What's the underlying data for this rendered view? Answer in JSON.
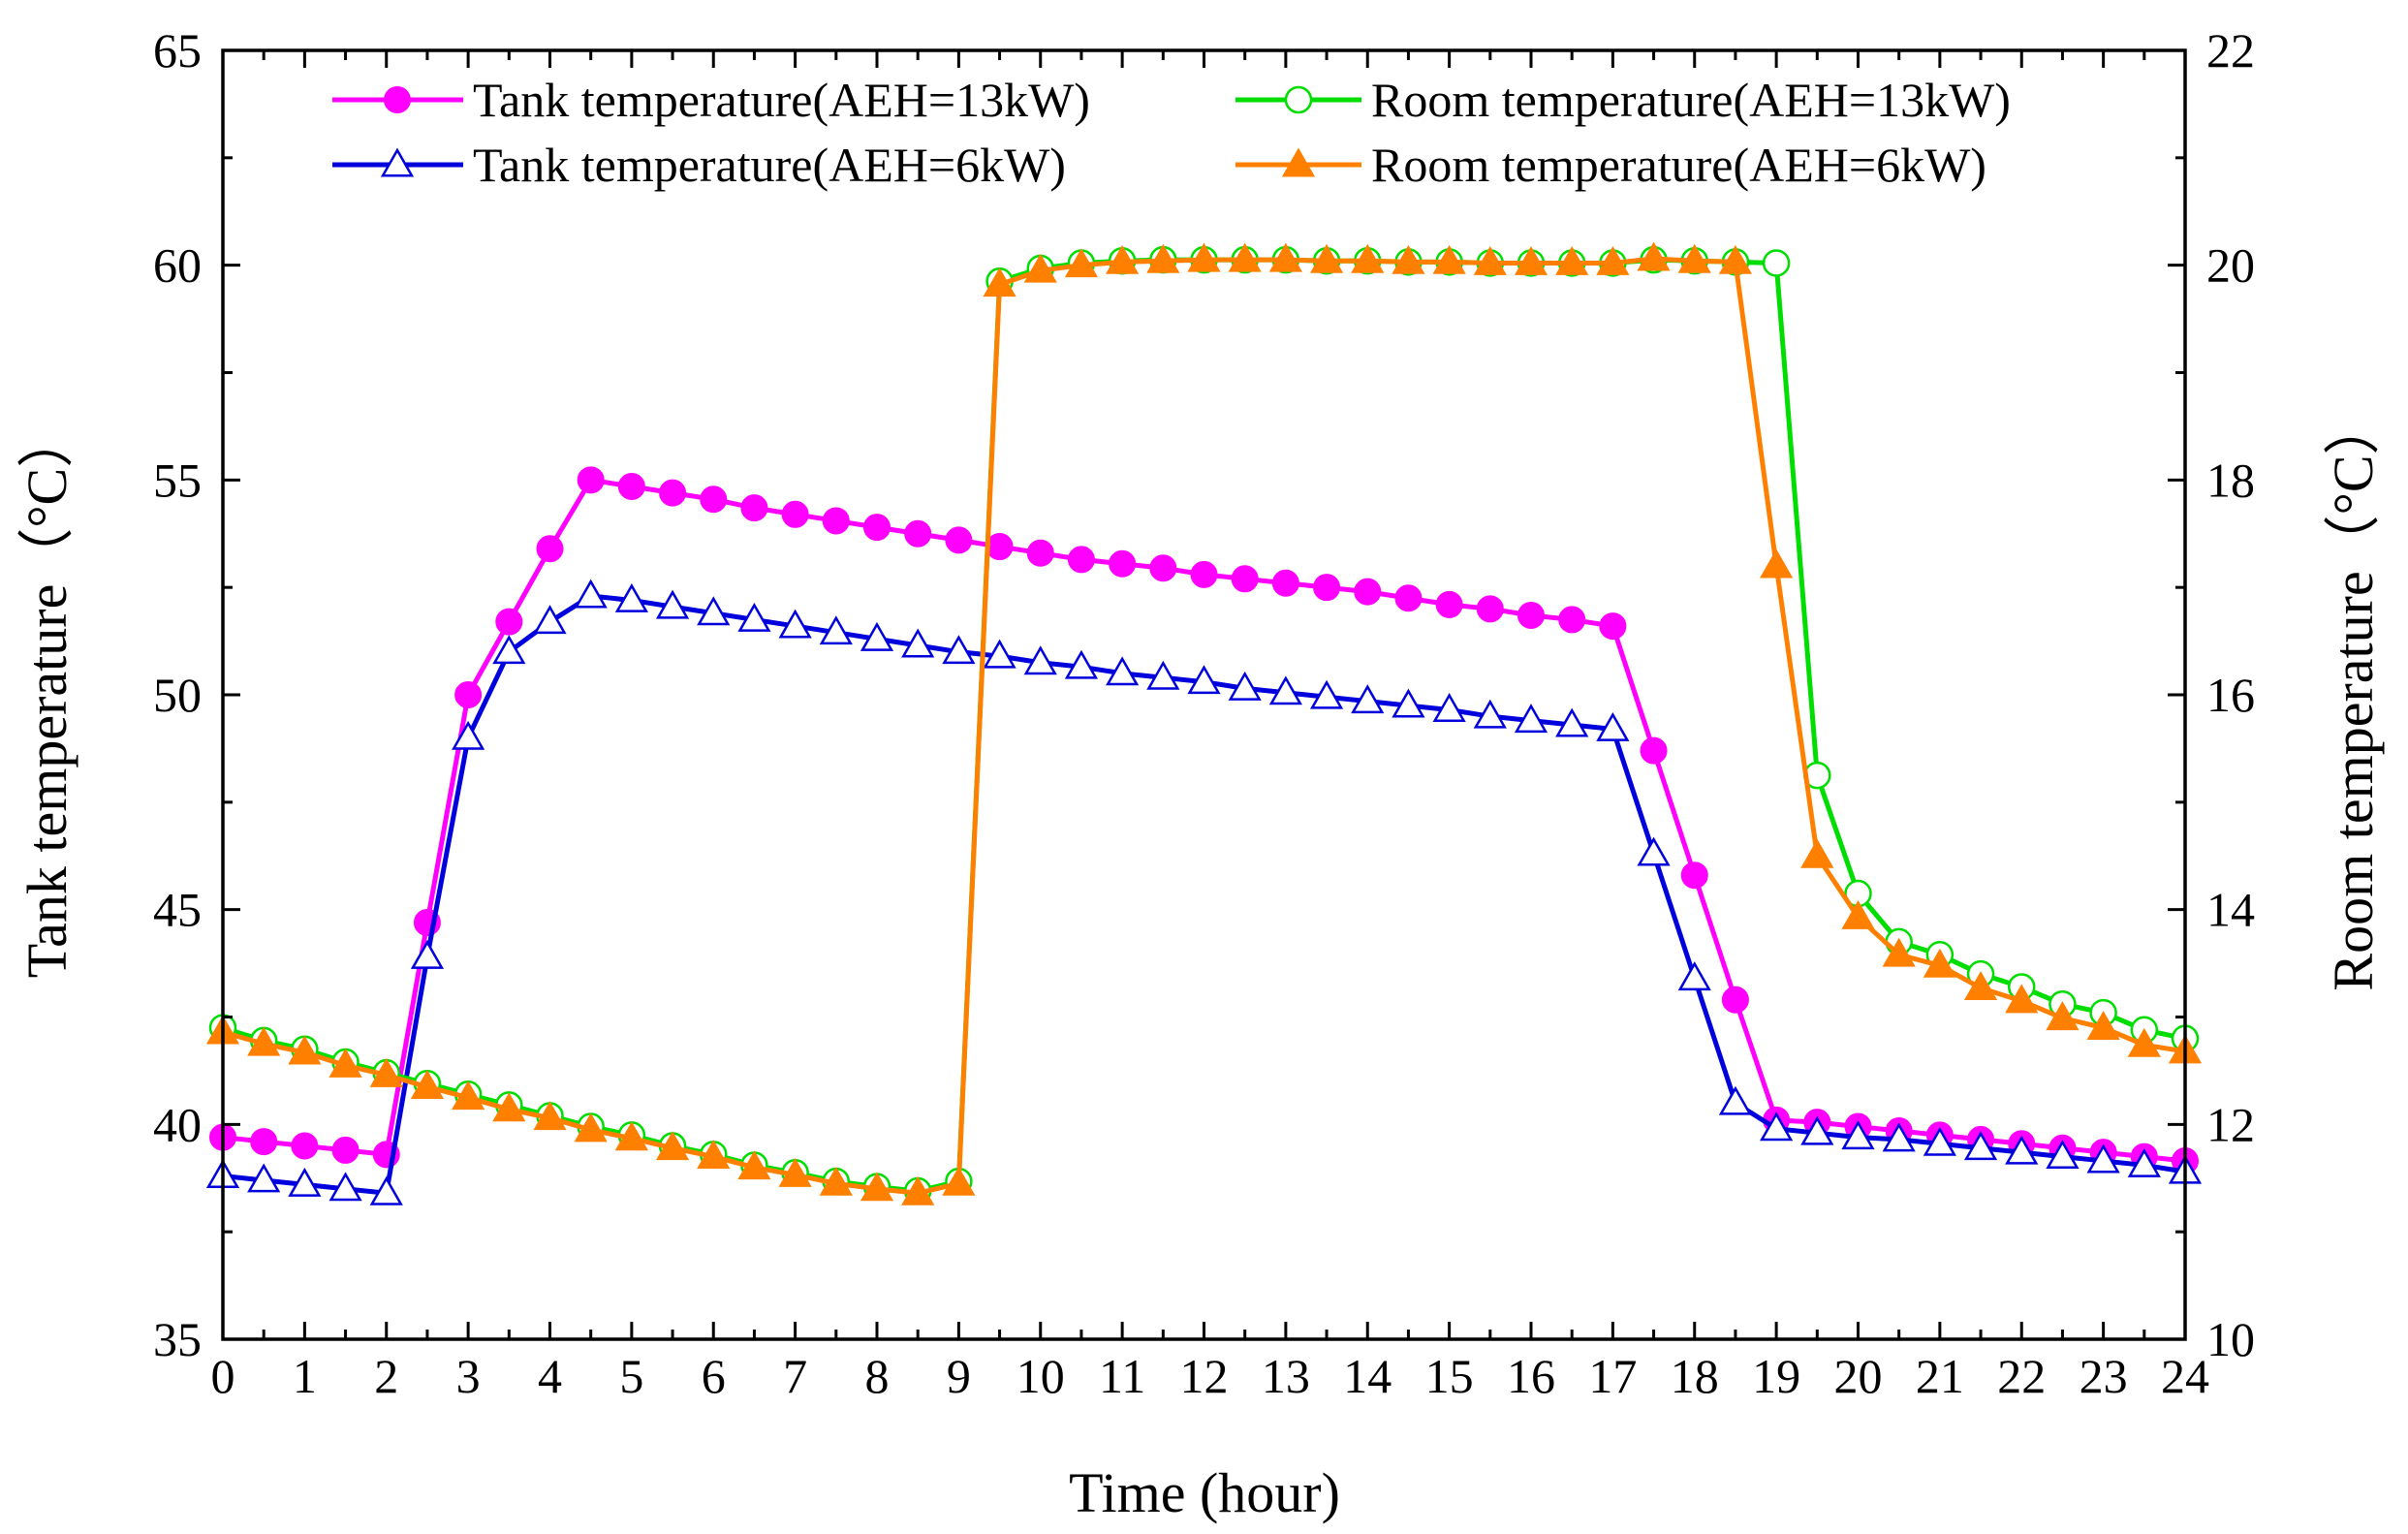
{
  "chart_data": {
    "type": "line",
    "title": "",
    "xlabel": "Time (hour)",
    "ylabel_left": "Tank temperature（°C）",
    "ylabel_right": "Room temperature（°C）",
    "xlim": [
      0,
      24
    ],
    "ylim_left": [
      35,
      65
    ],
    "ylim_right": [
      10,
      22
    ],
    "xticks": [
      0,
      1,
      2,
      3,
      4,
      5,
      6,
      7,
      8,
      9,
      10,
      11,
      12,
      13,
      14,
      15,
      16,
      17,
      18,
      19,
      20,
      21,
      22,
      23,
      24
    ],
    "yticks_left": [
      35,
      40,
      45,
      50,
      55,
      60,
      65
    ],
    "yticks_right": [
      10,
      12,
      14,
      16,
      18,
      20,
      22
    ],
    "legend_placement": "top",
    "series": [
      {
        "name": "Tank temperature(AEH=13kW)",
        "axis": "left",
        "color": "#ff00ff",
        "marker": "filled-circle",
        "x": [
          0,
          0.5,
          1,
          1.5,
          2,
          2.5,
          3,
          3.5,
          4,
          4.5,
          5,
          5.5,
          6,
          6.5,
          7,
          7.5,
          8,
          8.5,
          9,
          9.5,
          10,
          10.5,
          11,
          11.5,
          12,
          12.5,
          13,
          13.5,
          14,
          14.5,
          15,
          15.5,
          16,
          16.5,
          17,
          17.5,
          18,
          18.5,
          19,
          19.5,
          20,
          20.5,
          21,
          21.5,
          22,
          22.5,
          23,
          23.5,
          24
        ],
        "y": [
          39.7,
          39.6,
          39.5,
          39.4,
          39.3,
          44.7,
          50.0,
          51.7,
          53.4,
          55.0,
          54.85,
          54.7,
          54.55,
          54.35,
          54.2,
          54.05,
          53.9,
          53.75,
          53.6,
          53.45,
          53.3,
          53.15,
          53.05,
          52.95,
          52.8,
          52.7,
          52.6,
          52.5,
          52.4,
          52.25,
          52.1,
          52.0,
          51.85,
          51.75,
          51.6,
          48.7,
          45.8,
          42.9,
          40.1,
          40.05,
          39.95,
          39.85,
          39.75,
          39.65,
          39.55,
          39.45,
          39.35,
          39.25,
          39.15
        ]
      },
      {
        "name": "Tank temperature(AEH=6kW)",
        "axis": "left",
        "color": "#0000dd",
        "marker": "open-triangle",
        "x": [
          0,
          0.5,
          1,
          1.5,
          2,
          2.5,
          3,
          3.5,
          4,
          4.5,
          5,
          5.5,
          6,
          6.5,
          7,
          7.5,
          8,
          8.5,
          9,
          9.5,
          10,
          10.5,
          11,
          11.5,
          12,
          12.5,
          13,
          13.5,
          14,
          14.5,
          15,
          15.5,
          16,
          16.5,
          17,
          17.5,
          18,
          18.5,
          19,
          19.5,
          20,
          20.5,
          21,
          21.5,
          22,
          22.5,
          23,
          23.5,
          24
        ],
        "y": [
          38.8,
          38.7,
          38.6,
          38.5,
          38.4,
          43.9,
          49.0,
          51.0,
          51.7,
          52.3,
          52.2,
          52.05,
          51.9,
          51.75,
          51.6,
          51.45,
          51.3,
          51.15,
          51.0,
          50.9,
          50.75,
          50.65,
          50.5,
          50.4,
          50.3,
          50.15,
          50.05,
          49.95,
          49.85,
          49.75,
          49.65,
          49.5,
          49.4,
          49.3,
          49.2,
          46.3,
          43.4,
          40.5,
          39.9,
          39.8,
          39.7,
          39.65,
          39.55,
          39.45,
          39.35,
          39.25,
          39.15,
          39.05,
          38.9
        ]
      },
      {
        "name": "Room temperature(AEH=13kW)",
        "axis": "right",
        "color": "#00dd00",
        "marker": "open-circle",
        "x": [
          0,
          0.5,
          1,
          1.5,
          2,
          2.5,
          3,
          3.5,
          4,
          4.5,
          5,
          5.5,
          6,
          6.5,
          7,
          7.5,
          8,
          8.5,
          9,
          9.5,
          10,
          10.5,
          11,
          11.5,
          12,
          12.5,
          13,
          13.5,
          14,
          14.5,
          15,
          15.5,
          16,
          16.5,
          17,
          17.5,
          18,
          18.5,
          19,
          19.5,
          20,
          20.5,
          21,
          21.5,
          22,
          22.5,
          23,
          23.5,
          24
        ],
        "y": [
          12.9,
          12.78,
          12.7,
          12.58,
          12.48,
          12.38,
          12.28,
          12.18,
          12.08,
          11.98,
          11.9,
          11.8,
          11.72,
          11.62,
          11.55,
          11.47,
          11.42,
          11.38,
          11.47,
          19.85,
          19.97,
          20.02,
          20.04,
          20.05,
          20.05,
          20.05,
          20.05,
          20.04,
          20.04,
          20.03,
          20.03,
          20.02,
          20.02,
          20.02,
          20.02,
          20.05,
          20.04,
          20.03,
          20.02,
          15.25,
          14.15,
          13.7,
          13.58,
          13.4,
          13.28,
          13.12,
          13.04,
          12.88,
          12.8
        ]
      },
      {
        "name": "Room temperature(AEH=6kW)",
        "axis": "right",
        "color": "#ff8000",
        "marker": "filled-triangle",
        "x": [
          0,
          0.5,
          1,
          1.5,
          2,
          2.5,
          3,
          3.5,
          4,
          4.5,
          5,
          5.5,
          6,
          6.5,
          7,
          7.5,
          8,
          8.5,
          9,
          9.5,
          10,
          10.5,
          11,
          11.5,
          12,
          12.5,
          13,
          13.5,
          14,
          14.5,
          15,
          15.5,
          16,
          16.5,
          17,
          17.5,
          18,
          18.5,
          19,
          19.5,
          20,
          20.5,
          21,
          21.5,
          22,
          22.5,
          23,
          23.5,
          24
        ],
        "y": [
          12.86,
          12.75,
          12.67,
          12.55,
          12.46,
          12.35,
          12.25,
          12.14,
          12.06,
          11.95,
          11.87,
          11.78,
          11.7,
          11.6,
          11.53,
          11.45,
          11.4,
          11.36,
          11.45,
          19.82,
          19.95,
          20.0,
          20.03,
          20.04,
          20.05,
          20.05,
          20.05,
          20.04,
          20.04,
          20.03,
          20.03,
          20.02,
          20.02,
          20.02,
          20.02,
          20.06,
          20.04,
          20.03,
          17.2,
          14.5,
          13.93,
          13.58,
          13.48,
          13.27,
          13.15,
          12.99,
          12.9,
          12.74,
          12.68
        ]
      }
    ]
  }
}
